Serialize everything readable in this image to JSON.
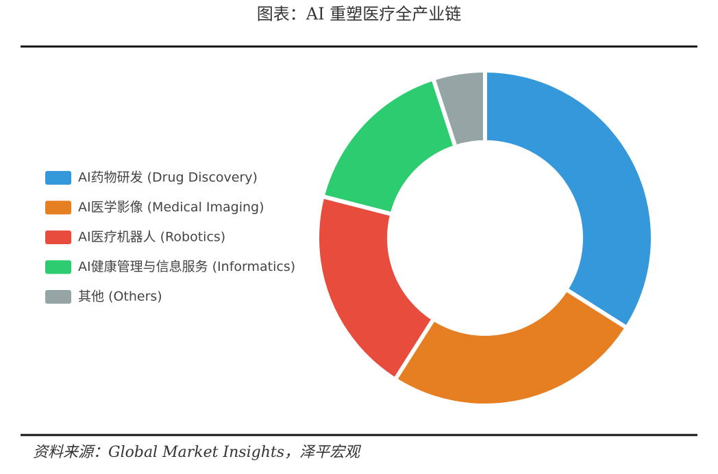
{
  "chart_data": {
    "type": "donut",
    "title": "图表：AI 重塑医疗全产业链",
    "categories": [
      "AI药物研发 (Drug Discovery)",
      "AI医学影像 (Medical Imaging)",
      "AI医疗机器人 (Robotics)",
      "AI健康管理与信息服务 (Informatics)",
      "其他 (Others)"
    ],
    "values": [
      34,
      25,
      20,
      16,
      5
    ],
    "colors": [
      "#3498db",
      "#e67e22",
      "#e74c3c",
      "#2ecc71",
      "#95a5a6"
    ],
    "legend": "left",
    "source": "资料来源：Global Market Insights，泽平宏观"
  }
}
